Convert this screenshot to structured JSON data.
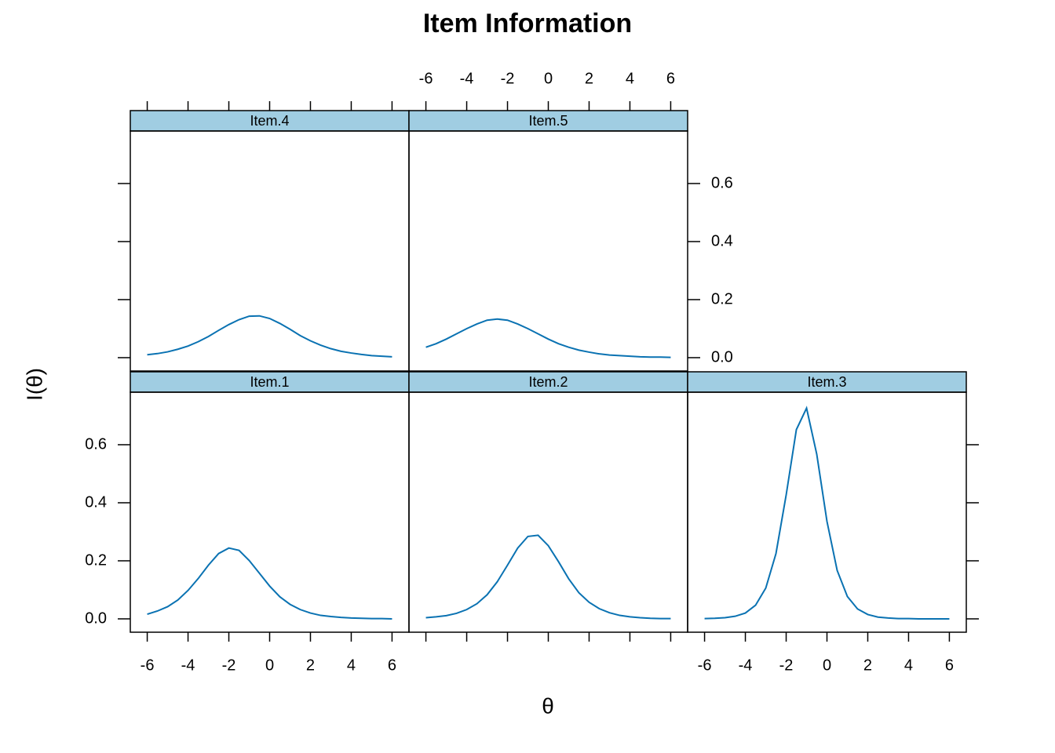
{
  "chart_data": {
    "type": "line",
    "title": "Item Information",
    "x_label": "θ",
    "y_label": "I(θ)",
    "x": [
      -6,
      -5.5,
      -5,
      -4.5,
      -4,
      -3.5,
      -3,
      -2.5,
      -2,
      -1.5,
      -1,
      -0.5,
      0,
      0.5,
      1,
      1.5,
      2,
      2.5,
      3,
      3.5,
      4,
      4.5,
      5,
      5.5,
      6
    ],
    "xlim": [
      -6.83,
      6.83
    ],
    "ylim": [
      -0.046,
      0.781
    ],
    "xticks": [
      -6,
      -4,
      -2,
      0,
      2,
      4,
      6
    ],
    "yticks": [
      {
        "value": 0,
        "label": "0.0"
      },
      {
        "value": 0.2,
        "label": "0.2"
      },
      {
        "value": 0.4,
        "label": "0.4"
      },
      {
        "value": 0.6,
        "label": "0.6"
      }
    ],
    "series": [
      {
        "name": "Item.1",
        "color": "#0a72b2",
        "values": [
          0.016,
          0.027,
          0.042,
          0.065,
          0.098,
          0.139,
          0.185,
          0.225,
          0.244,
          0.236,
          0.201,
          0.157,
          0.113,
          0.076,
          0.05,
          0.032,
          0.02,
          0.012,
          0.008,
          0.005,
          0.003,
          0.002,
          0.001,
          0.001,
          0.0
        ]
      },
      {
        "name": "Item.2",
        "color": "#0a72b2",
        "values": [
          0.004,
          0.007,
          0.011,
          0.019,
          0.032,
          0.052,
          0.083,
          0.128,
          0.185,
          0.244,
          0.284,
          0.288,
          0.252,
          0.197,
          0.138,
          0.09,
          0.057,
          0.035,
          0.021,
          0.012,
          0.007,
          0.004,
          0.002,
          0.001,
          0.001
        ]
      },
      {
        "name": "Item.3",
        "color": "#0a72b2",
        "values": [
          0.001,
          0.002,
          0.004,
          0.009,
          0.02,
          0.047,
          0.106,
          0.225,
          0.427,
          0.652,
          0.726,
          0.567,
          0.336,
          0.167,
          0.077,
          0.034,
          0.015,
          0.006,
          0.003,
          0.001,
          0.001,
          0.0,
          0.0,
          0.0,
          0.0
        ]
      },
      {
        "name": "Item.4",
        "color": "#0a72b2",
        "values": [
          0.01,
          0.014,
          0.02,
          0.029,
          0.04,
          0.055,
          0.073,
          0.094,
          0.114,
          0.131,
          0.143,
          0.144,
          0.135,
          0.118,
          0.098,
          0.076,
          0.058,
          0.043,
          0.031,
          0.022,
          0.016,
          0.011,
          0.007,
          0.005,
          0.003
        ]
      },
      {
        "name": "Item.5",
        "color": "#0a72b2",
        "values": [
          0.036,
          0.048,
          0.064,
          0.082,
          0.1,
          0.116,
          0.129,
          0.133,
          0.129,
          0.116,
          0.1,
          0.082,
          0.064,
          0.048,
          0.036,
          0.026,
          0.019,
          0.013,
          0.009,
          0.007,
          0.005,
          0.003,
          0.002,
          0.002,
          0.001
        ]
      }
    ]
  }
}
